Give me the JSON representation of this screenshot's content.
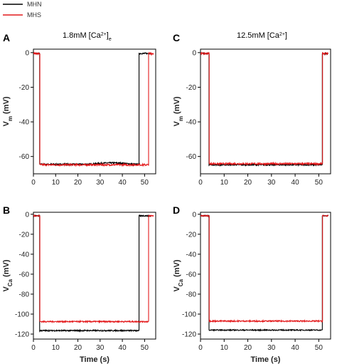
{
  "legend": [
    {
      "name": "MHN",
      "color": "#000000"
    },
    {
      "name": "MHS",
      "color": "#e31a1c"
    }
  ],
  "conditions": {
    "left": {
      "main": "1.8mM [Ca",
      "sup": "2+",
      "close": "]",
      "sub": "e"
    },
    "right": {
      "main": "12.5mM [Ca",
      "sup": "2+",
      "close": "]"
    }
  },
  "chart_data": [
    {
      "id": "A",
      "type": "line",
      "letter": "A",
      "ylabel_main": "V",
      "ylabel_sub": "m",
      "ylabel_unit": " (mV)",
      "xlabel": "",
      "xlim": [
        0,
        55
      ],
      "ylim": [
        -70,
        2
      ],
      "xticks": [
        0,
        10,
        20,
        30,
        40,
        50
      ],
      "yticks": [
        0,
        -20,
        -40,
        -60
      ],
      "series": [
        {
          "name": "MHN",
          "color": "#000000",
          "x": [
            0,
            2.8,
            2.8,
            47.5,
            47.5,
            53
          ],
          "y": [
            -0.5,
            -0.5,
            -64.5,
            -64.5,
            -0.5,
            -0.5
          ],
          "noise": 0.4,
          "bump": {
            "from": 25,
            "to": 45,
            "dy": 0.8
          }
        },
        {
          "name": "MHS",
          "color": "#e31a1c",
          "x": [
            0,
            2.9,
            2.9,
            51.8,
            51.8,
            54
          ],
          "y": [
            -0.5,
            -0.5,
            -64.8,
            -64.8,
            -0.5,
            -0.5
          ],
          "noise": 0.5
        }
      ]
    },
    {
      "id": "C",
      "type": "line",
      "letter": "C",
      "ylabel_main": "V",
      "ylabel_sub": "m",
      "ylabel_unit": " (mV)",
      "xlabel": "",
      "xlim": [
        0,
        55
      ],
      "ylim": [
        -70,
        2
      ],
      "xticks": [
        0,
        10,
        20,
        30,
        40,
        50
      ],
      "yticks": [
        0,
        -20,
        -40,
        -60
      ],
      "series": [
        {
          "name": "MHN",
          "color": "#000000",
          "x": [
            0,
            3.6,
            3.6,
            51.5,
            51.5,
            54
          ],
          "y": [
            -0.5,
            -0.5,
            -64.8,
            -64.8,
            -0.5,
            -0.5
          ],
          "noise": 0.35
        },
        {
          "name": "MHS",
          "color": "#e31a1c",
          "x": [
            0,
            3.7,
            3.7,
            51.6,
            51.6,
            54
          ],
          "y": [
            -0.5,
            -0.5,
            -64.2,
            -64.2,
            -0.5,
            -0.5
          ],
          "noise": 0.5
        }
      ]
    },
    {
      "id": "B",
      "type": "line",
      "letter": "B",
      "ylabel_main": "V",
      "ylabel_sub": "Ca",
      "ylabel_unit": " (mV)",
      "xlabel": "Time (s)",
      "xlim": [
        0,
        55
      ],
      "ylim": [
        -125,
        2
      ],
      "xticks": [
        0,
        10,
        20,
        30,
        40,
        50
      ],
      "yticks": [
        0,
        -20,
        -40,
        -60,
        -80,
        -100,
        -120
      ],
      "series": [
        {
          "name": "MHN",
          "color": "#000000",
          "x": [
            0,
            2.8,
            2.8,
            47.5,
            47.5,
            53
          ],
          "y": [
            -1.5,
            -1.5,
            -116.5,
            -116.5,
            -1.5,
            -1.5
          ],
          "noise": 0.6
        },
        {
          "name": "MHS",
          "color": "#e31a1c",
          "x": [
            0,
            2.9,
            2.9,
            51.8,
            51.8,
            54
          ],
          "y": [
            -1.5,
            -1.5,
            -107.5,
            -107.5,
            -1.5,
            -1.5
          ],
          "noise": 0.6
        }
      ]
    },
    {
      "id": "D",
      "type": "line",
      "letter": "D",
      "ylabel_main": "V",
      "ylabel_sub": "Ca",
      "ylabel_unit": " (mV)",
      "xlabel": "Time (s)",
      "xlim": [
        0,
        55
      ],
      "ylim": [
        -125,
        2
      ],
      "xticks": [
        0,
        10,
        20,
        30,
        40,
        50
      ],
      "yticks": [
        0,
        -20,
        -40,
        -60,
        -80,
        -100,
        -120
      ],
      "series": [
        {
          "name": "MHN",
          "color": "#000000",
          "x": [
            0,
            3.6,
            3.6,
            51.5,
            51.5,
            54
          ],
          "y": [
            -1.5,
            -1.5,
            -116.0,
            -116.0,
            -1.5,
            -1.5
          ],
          "noise": 0.5
        },
        {
          "name": "MHS",
          "color": "#e31a1c",
          "x": [
            0,
            3.7,
            3.7,
            51.6,
            51.6,
            54
          ],
          "y": [
            -1.5,
            -1.5,
            -107.0,
            -107.0,
            -1.5,
            -1.5
          ],
          "noise": 0.6
        }
      ]
    }
  ]
}
